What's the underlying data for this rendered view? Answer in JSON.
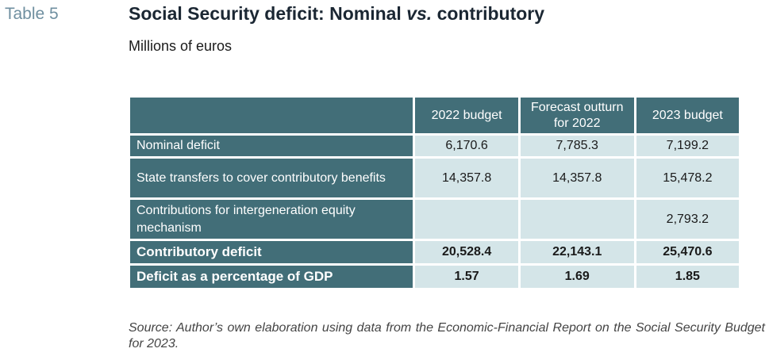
{
  "header": {
    "table_number": "Table 5",
    "title_part1": "Social Security deficit: Nominal ",
    "title_vs": "vs.",
    "title_part2": " contributory",
    "subtitle": "Millions of euros"
  },
  "table": {
    "columns": [
      "2022 budget",
      "Forecast outturn for 2022",
      "2023 budget"
    ],
    "rows": [
      {
        "label": "Nominal deficit",
        "values": [
          "6,170.6",
          "7,785.3",
          "7,199.2"
        ]
      },
      {
        "label": "State transfers to cover contributory benefits",
        "values": [
          "14,357.8",
          "14,357.8",
          "15,478.2"
        ]
      },
      {
        "label": "Contributions for intergeneration equity mechanism",
        "values": [
          "",
          "",
          "2,793.2"
        ]
      },
      {
        "label": "Contributory deficit",
        "values": [
          "20,528.4",
          "22,143.1",
          "25,470.6"
        ]
      },
      {
        "label": "Deficit as a percentage of GDP",
        "values": [
          "1.57",
          "1.69",
          "1.85"
        ]
      }
    ]
  },
  "footer": {
    "source": "Source: Author’s own elaboration using data from the Economic-Financial Report on the Social Security Budget for 2023."
  },
  "colors": {
    "header_fill": "#426e78",
    "cell_fill": "#d4e5e8",
    "label_accent": "#6f8fa0"
  }
}
